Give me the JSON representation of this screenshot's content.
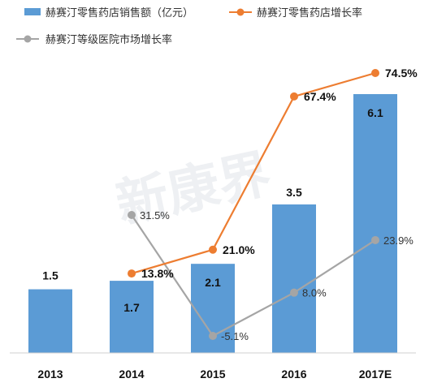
{
  "watermark": "新康界",
  "chart_data": {
    "type": "bar",
    "categories": [
      "2013",
      "2014",
      "2015",
      "2016",
      "2017E"
    ],
    "ylim": [
      0,
      7
    ],
    "rate_ylim": [
      -10,
      80
    ],
    "legend_placement": "top",
    "grid": false,
    "series": [
      {
        "name": "赫赛汀零售药店销售额（亿元）",
        "kind": "bar",
        "color": "#5b9bd5",
        "values": [
          1.5,
          1.7,
          2.1,
          3.5,
          6.1
        ],
        "labels": [
          "1.5",
          "1.7",
          "2.1",
          "3.5",
          "6.1"
        ]
      },
      {
        "name": "赫赛汀零售药店增长率",
        "kind": "line",
        "color": "#ed7d31",
        "values": [
          null,
          13.8,
          21.0,
          67.4,
          74.5
        ],
        "labels": [
          "",
          "13.8%",
          "21.0%",
          "67.4%",
          "74.5%"
        ]
      },
      {
        "name": "赫赛汀等级医院市场增长率",
        "kind": "line",
        "color": "#a5a5a5",
        "values": [
          null,
          31.5,
          -5.1,
          8.0,
          23.9
        ],
        "labels": [
          "",
          "31.5%",
          "-5.1%",
          "8.0%",
          "23.9%"
        ]
      }
    ]
  }
}
